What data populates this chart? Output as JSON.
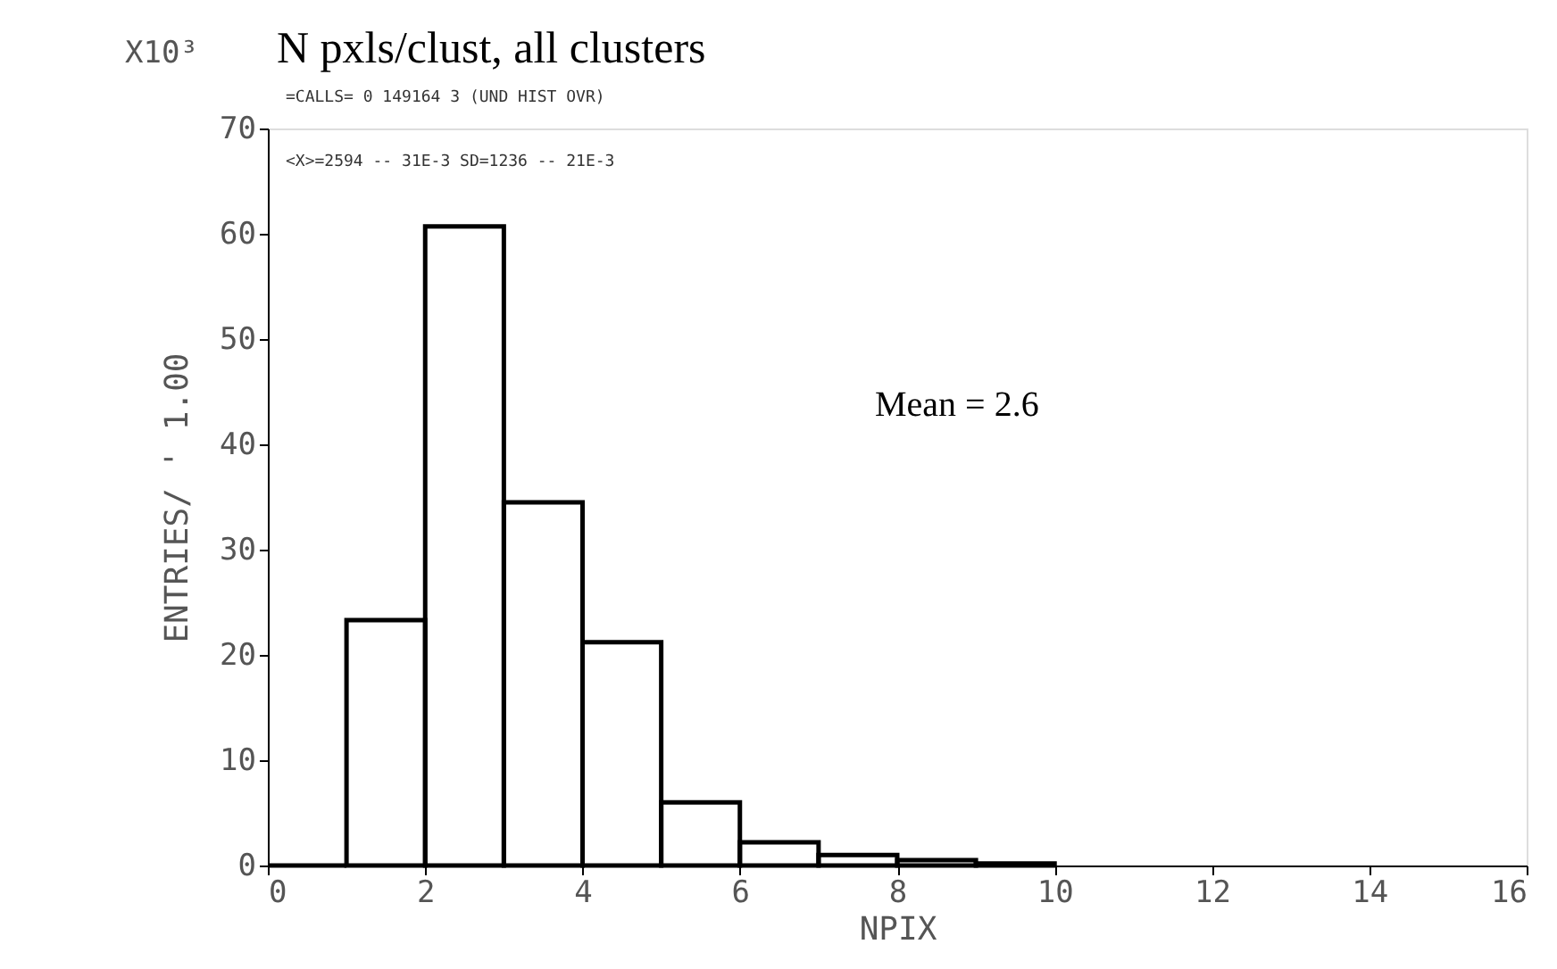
{
  "chart_data": {
    "type": "histogram",
    "title": "N pxls/clust, all clusters",
    "xlabel": "NPIX",
    "ylabel": "ENTRIES/  '  1.00",
    "bins": [
      0,
      1,
      2,
      3,
      4,
      5,
      6,
      7,
      8,
      9,
      10
    ],
    "values": [
      0,
      23.3,
      60.7,
      34.5,
      21.2,
      6,
      2.2,
      1,
      0.5,
      0.2
    ],
    "color": "#000000",
    "xlim": [
      0,
      16
    ],
    "xticks": [
      0,
      2,
      4,
      6,
      8,
      10,
      12,
      14,
      16
    ],
    "ylim": [
      0,
      70
    ],
    "yticks": [
      0,
      10,
      20,
      30,
      40,
      50,
      60,
      70
    ],
    "grid": false,
    "annotations": [
      "X10³",
      "=CALLS= 0  149164  3   (UND HIST OVR)",
      "<X>=2594 -- 31E-3    SD=1236 -- 21E-3",
      "Mean = 2.6"
    ]
  }
}
